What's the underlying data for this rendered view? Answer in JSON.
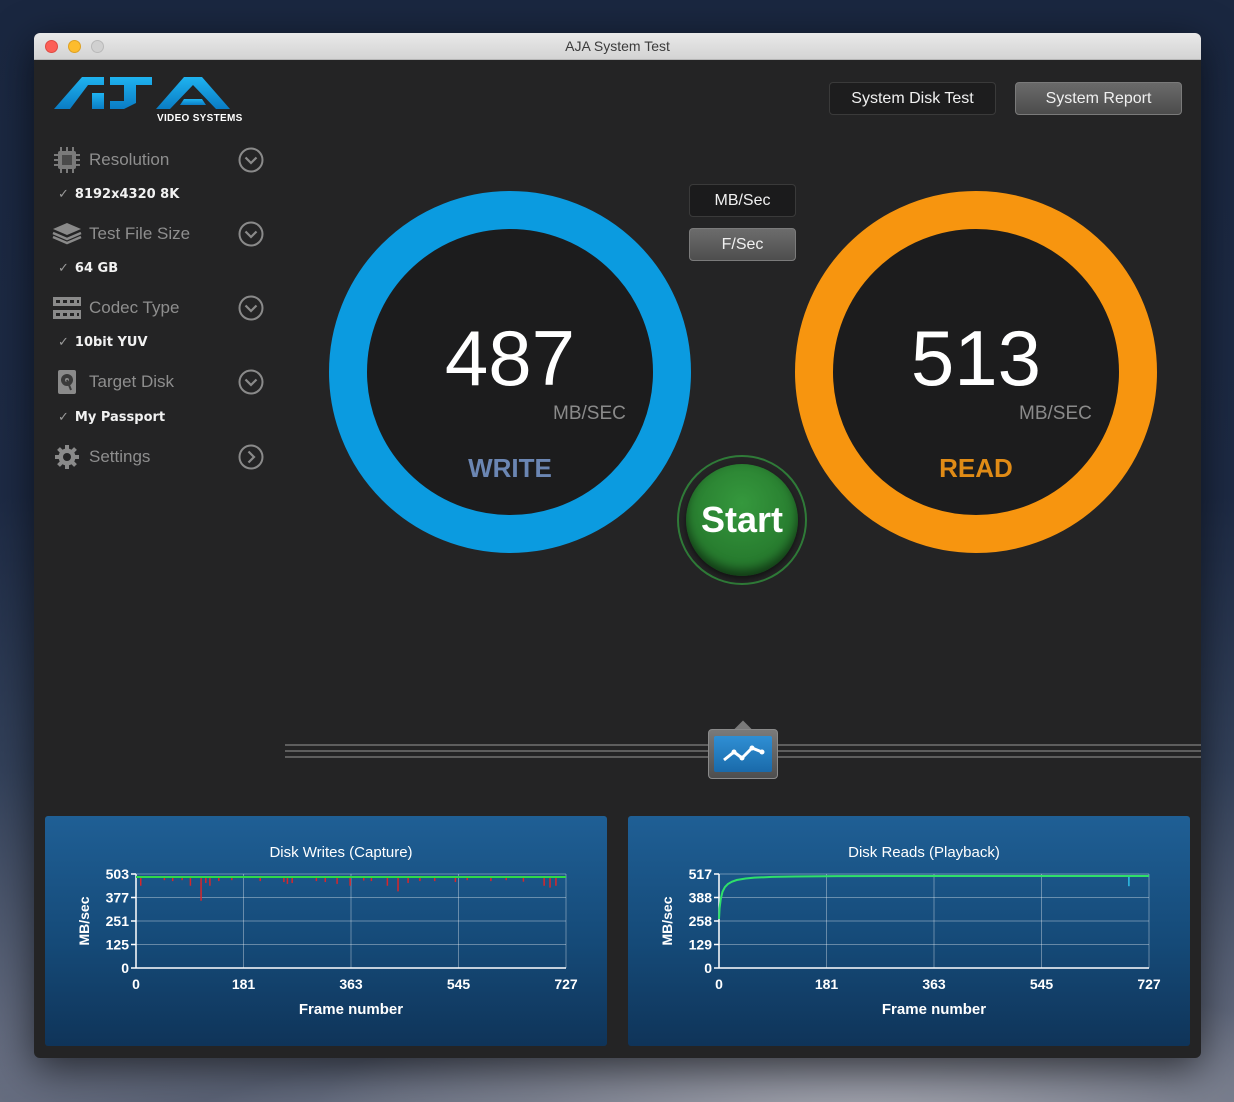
{
  "window": {
    "title": "AJA System Test"
  },
  "logo": {
    "brand": "AJA",
    "subtitle": "VIDEO SYSTEMS"
  },
  "toolbar": {
    "disk_test_label": "System Disk Test",
    "report_label": "System Report"
  },
  "sidebar": {
    "items": [
      {
        "label": "Resolution",
        "value": "8192x4320 8K",
        "icon": "chip-icon",
        "chevron": "down"
      },
      {
        "label": "Test File Size",
        "value": "64 GB",
        "icon": "layers-icon",
        "chevron": "down"
      },
      {
        "label": "Codec Type",
        "value": "10bit YUV",
        "icon": "film-icon",
        "chevron": "down"
      },
      {
        "label": "Target Disk",
        "value": "My Passport",
        "icon": "disk-icon",
        "chevron": "down"
      },
      {
        "label": "Settings",
        "icon": "gear-icon",
        "chevron": "right"
      }
    ],
    "checkmark": "✓"
  },
  "units": {
    "mbsec_label": "MB/Sec",
    "fsec_label": "F/Sec",
    "selected": "F/Sec"
  },
  "write": {
    "value": "487",
    "unit": "MB/SEC",
    "label": "WRITE",
    "ring_color": "#0b9be0",
    "label_color": "#6b86b3"
  },
  "read": {
    "value": "513",
    "unit": "MB/SEC",
    "label": "READ",
    "ring_color": "#f7950f",
    "label_color": "#e08b16"
  },
  "start": {
    "label": "Start"
  },
  "charts": {
    "write": {
      "title": "Disk Writes (Capture)",
      "ylabel": "MB/sec",
      "xlabel": "Frame number",
      "yticks": [
        "503",
        "377",
        "251",
        "125",
        "0"
      ],
      "xticks": [
        "0",
        "181",
        "363",
        "545",
        "727"
      ]
    },
    "read": {
      "title": "Disk Reads (Playback)",
      "ylabel": "MB/sec",
      "xlabel": "Frame number",
      "yticks": [
        "517",
        "388",
        "258",
        "129",
        "0"
      ],
      "xticks": [
        "0",
        "181",
        "363",
        "545",
        "727"
      ]
    }
  },
  "chart_data": [
    {
      "type": "line",
      "title": "Disk Writes (Capture)",
      "xlabel": "Frame number",
      "ylabel": "MB/sec",
      "xlim": [
        0,
        727
      ],
      "ylim": [
        0,
        503
      ],
      "series": [
        {
          "x": [
            0,
            727
          ],
          "y": [
            487,
            487
          ]
        }
      ],
      "dips": [
        {
          "x": 8,
          "y": 440
        },
        {
          "x": 48,
          "y": 470
        },
        {
          "x": 62,
          "y": 465
        },
        {
          "x": 78,
          "y": 470
        },
        {
          "x": 92,
          "y": 440
        },
        {
          "x": 110,
          "y": 360
        },
        {
          "x": 118,
          "y": 455
        },
        {
          "x": 125,
          "y": 440
        },
        {
          "x": 140,
          "y": 465
        },
        {
          "x": 162,
          "y": 470
        },
        {
          "x": 210,
          "y": 465
        },
        {
          "x": 250,
          "y": 460
        },
        {
          "x": 256,
          "y": 450
        },
        {
          "x": 264,
          "y": 455
        },
        {
          "x": 305,
          "y": 465
        },
        {
          "x": 320,
          "y": 460
        },
        {
          "x": 340,
          "y": 450
        },
        {
          "x": 362,
          "y": 440
        },
        {
          "x": 385,
          "y": 468
        },
        {
          "x": 398,
          "y": 465
        },
        {
          "x": 425,
          "y": 440
        },
        {
          "x": 443,
          "y": 410
        },
        {
          "x": 460,
          "y": 455
        },
        {
          "x": 480,
          "y": 465
        },
        {
          "x": 505,
          "y": 465
        },
        {
          "x": 540,
          "y": 460
        },
        {
          "x": 560,
          "y": 470
        },
        {
          "x": 600,
          "y": 465
        },
        {
          "x": 626,
          "y": 470
        },
        {
          "x": 655,
          "y": 462
        },
        {
          "x": 690,
          "y": 440
        },
        {
          "x": 700,
          "y": 430
        },
        {
          "x": 710,
          "y": 440
        }
      ]
    },
    {
      "type": "line",
      "title": "Disk Reads (Playback)",
      "xlabel": "Frame number",
      "ylabel": "MB/sec",
      "xlim": [
        0,
        727
      ],
      "ylim": [
        0,
        517
      ],
      "series": [
        {
          "x": [
            0,
            1,
            3,
            6,
            10,
            15,
            22,
            30,
            45,
            60,
            90,
            130,
            200,
            300,
            727
          ],
          "y": [
            270,
            330,
            380,
            420,
            445,
            462,
            475,
            484,
            492,
            497,
            501,
            503,
            505,
            506,
            506
          ]
        }
      ],
      "dips": [
        {
          "x": 693,
          "y": 450
        }
      ]
    }
  ]
}
